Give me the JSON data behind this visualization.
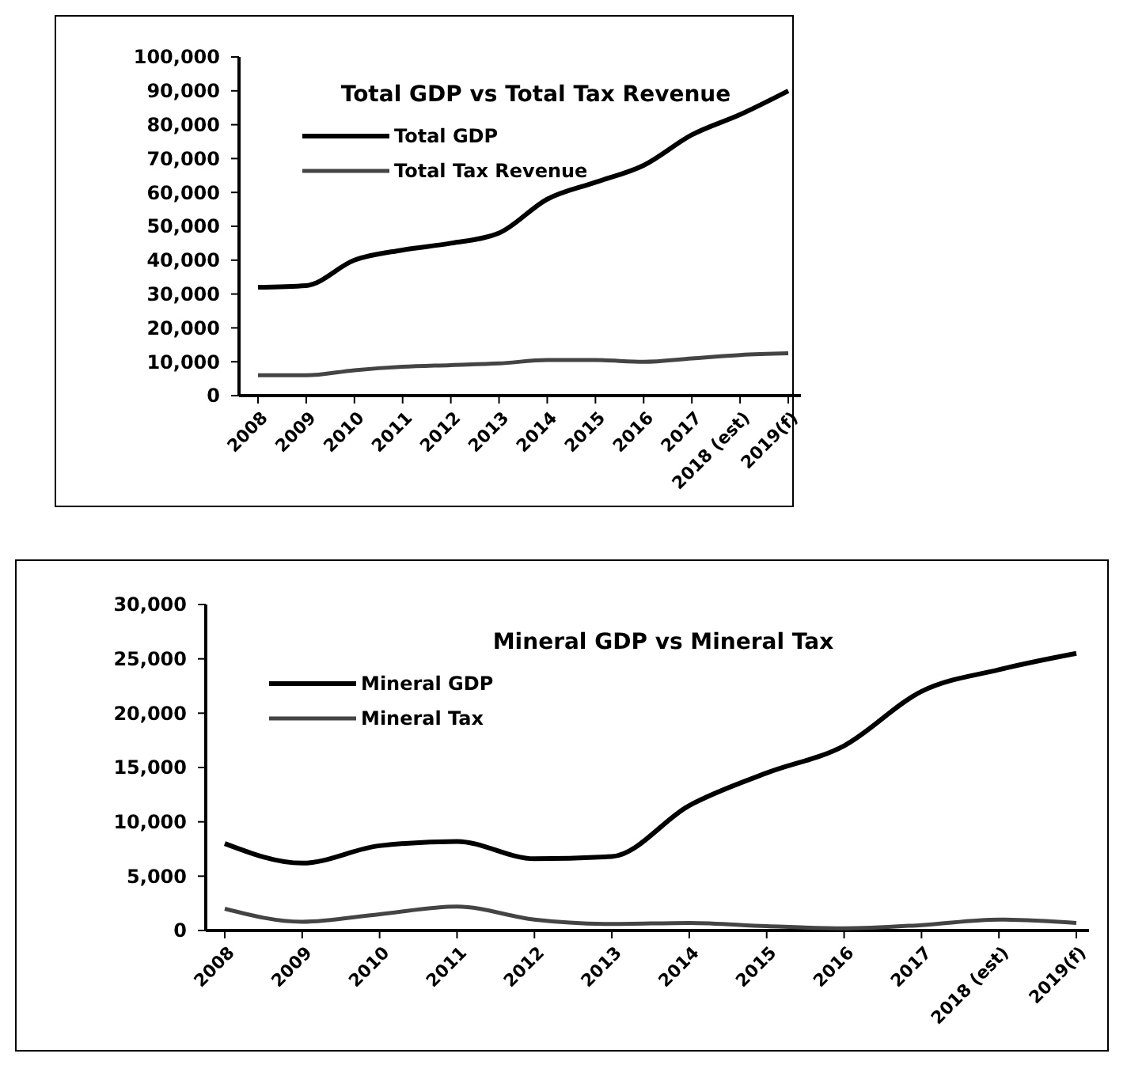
{
  "chart_data": [
    {
      "type": "line",
      "title": "Total GDP vs Total Tax Revenue",
      "categories": [
        "2008",
        "2009",
        "2010",
        "2011",
        "2012",
        "2013",
        "2014",
        "2015",
        "2016",
        "2017",
        "2018 (est)",
        "2019(f)"
      ],
      "series": [
        {
          "name": "Total GDP",
          "color": "#000000",
          "values": [
            32000,
            32500,
            40000,
            43000,
            45000,
            48000,
            58000,
            63000,
            68000,
            77000,
            83000,
            90000
          ]
        },
        {
          "name": "Total Tax Revenue",
          "color": "#444444",
          "values": [
            6000,
            6000,
            7500,
            8500,
            9000,
            9500,
            10500,
            10500,
            10000,
            11000,
            12000,
            12500
          ]
        }
      ],
      "ylim": [
        0,
        100000
      ],
      "yticks": [
        {
          "value": 0,
          "label": "0"
        },
        {
          "value": 10000,
          "label": "10,000"
        },
        {
          "value": 20000,
          "label": "20,000"
        },
        {
          "value": 30000,
          "label": "30,000"
        },
        {
          "value": 40000,
          "label": "40,000"
        },
        {
          "value": 50000,
          "label": "50,000"
        },
        {
          "value": 60000,
          "label": "60,000"
        },
        {
          "value": 70000,
          "label": "70,000"
        },
        {
          "value": 80000,
          "label": "80,000"
        },
        {
          "value": 90000,
          "label": "90,000"
        },
        {
          "value": 100000,
          "label": "100,000"
        }
      ],
      "legend": "top left",
      "grid": false
    },
    {
      "type": "line",
      "title": "Mineral GDP vs Mineral Tax",
      "categories": [
        "2008",
        "2009",
        "2010",
        "2011",
        "2012",
        "2013",
        "2014",
        "2015",
        "2016",
        "2017",
        "2018 (est)",
        "2019(f)"
      ],
      "series": [
        {
          "name": "Mineral GDP",
          "color": "#000000",
          "values": [
            8000,
            6200,
            7800,
            8200,
            6600,
            6800,
            11500,
            14500,
            17000,
            22000,
            24000,
            25500
          ]
        },
        {
          "name": "Mineral Tax",
          "color": "#444444",
          "values": [
            2000,
            800,
            1500,
            2200,
            1000,
            600,
            700,
            400,
            200,
            500,
            1000,
            700
          ]
        }
      ],
      "ylim": [
        0,
        30000
      ],
      "yticks": [
        {
          "value": 0,
          "label": "0"
        },
        {
          "value": 5000,
          "label": "5,000"
        },
        {
          "value": 10000,
          "label": "10,000"
        },
        {
          "value": 15000,
          "label": "15,000"
        },
        {
          "value": 20000,
          "label": "20,000"
        },
        {
          "value": 25000,
          "label": "25,000"
        },
        {
          "value": 30000,
          "label": "30,000"
        }
      ],
      "legend": "top left",
      "grid": false
    }
  ]
}
